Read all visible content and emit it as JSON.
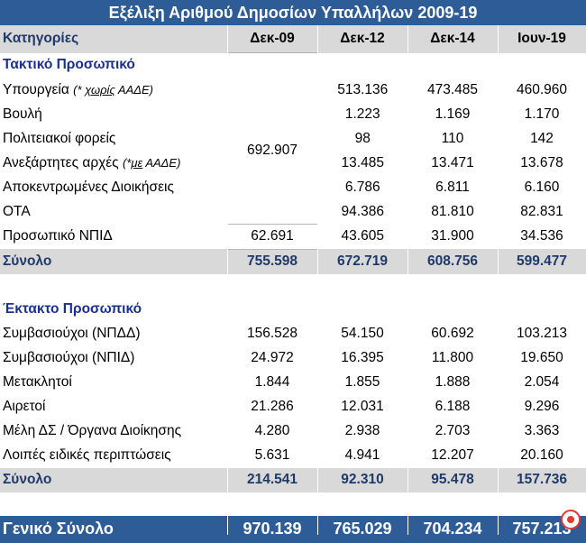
{
  "title": "Εξέλιξη Αριθμού Δημοσίων Υπαλλήλων 2009-19",
  "header": {
    "category": "Κατηγορίες",
    "columns": [
      "Δεκ-09",
      "Δεκ-12",
      "Δεκ-14",
      "Ιουν-19"
    ]
  },
  "section1": {
    "title": "Τακτικό Προσωπικό",
    "merged_dec09": "692.907",
    "rows": [
      {
        "label": "Υπουργεία",
        "note_pre": "(* ",
        "note_ul": "χωρίς",
        "note_post": " ΑΑΔΕ)",
        "values": [
          "513.136",
          "473.485",
          "460.960"
        ]
      },
      {
        "label": "Βουλή",
        "values": [
          "1.223",
          "1.169",
          "1.170"
        ]
      },
      {
        "label": "Πολιτειακοί φορείς",
        "values": [
          "98",
          "110",
          "142"
        ]
      },
      {
        "label": "Ανεξάρτητες αρχές",
        "note_pre": "(*",
        "note_ul": "με",
        "note_post": " ΑΑΔΕ)",
        "values": [
          "13.485",
          "13.471",
          "13.678"
        ]
      },
      {
        "label": "Αποκεντρωμένες Διοικήσεις",
        "values": [
          "6.786",
          "6.811",
          "6.160"
        ]
      },
      {
        "label": "ΟΤΑ",
        "values": [
          "94.386",
          "81.810",
          "82.831"
        ]
      },
      {
        "label": "Προσωπικό ΝΠΙΔ",
        "values": [
          "62.691",
          "43.605",
          "31.900",
          "34.536"
        ]
      }
    ],
    "total": {
      "label": "Σύνολο",
      "values": [
        "755.598",
        "672.719",
        "608.756",
        "599.477"
      ]
    }
  },
  "section2": {
    "title": "Έκτακτο Προσωπικό",
    "rows": [
      {
        "label": "Συμβασιούχοι (ΝΠΔΔ)",
        "values": [
          "156.528",
          "54.150",
          "60.692",
          "103.213"
        ]
      },
      {
        "label": "Συμβασιούχοι (ΝΠΙΔ)",
        "values": [
          "24.972",
          "16.395",
          "11.800",
          "19.650"
        ]
      },
      {
        "label": "Μετακλητοί",
        "values": [
          "1.844",
          "1.855",
          "1.888",
          "2.054"
        ]
      },
      {
        "label": "Αιρετοί",
        "values": [
          "21.286",
          "12.031",
          "6.188",
          "9.296"
        ]
      },
      {
        "label": "Μέλη ΔΣ / Όργανα Διοίκησης",
        "values": [
          "4.280",
          "2.938",
          "2.703",
          "3.363"
        ]
      },
      {
        "label": "Λοιπές ειδικές περιπτώσεις",
        "values": [
          "5.631",
          "4.941",
          "12.207",
          "20.160"
        ]
      }
    ],
    "total": {
      "label": "Σύνολο",
      "values": [
        "214.541",
        "92.310",
        "95.478",
        "157.736"
      ]
    }
  },
  "grand_total": {
    "label": "Γενικό Σύνολο",
    "values": [
      "970.139",
      "765.029",
      "704.234",
      "757.213"
    ]
  },
  "colors": {
    "title_bg": "#2e5c96",
    "header_bg": "#d9d9d9",
    "section_title": "#1a2f95",
    "logo": "#e23b2e"
  },
  "logo_icon": "logo-icon"
}
